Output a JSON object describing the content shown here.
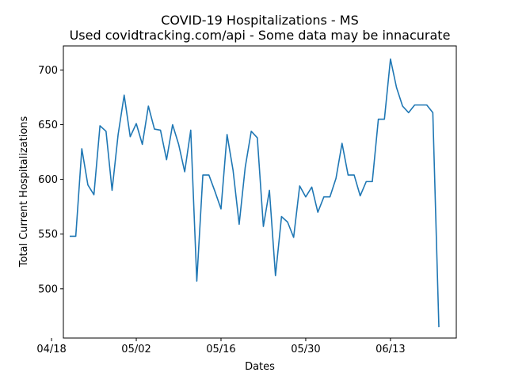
{
  "chart_data": {
    "type": "line",
    "title": "COVID-19 Hospitalizations - MS",
    "subtitle": "Used covidtracking.com/api - Some data may be innacurate",
    "xlabel": "Dates",
    "ylabel": "Total Current Hospitalizations",
    "x_tick_labels": [
      "04/18",
      "05/02",
      "05/16",
      "05/30",
      "06/13"
    ],
    "y_tick_labels": [
      "500",
      "550",
      "600",
      "650",
      "700"
    ],
    "y_ticks": [
      500,
      550,
      600,
      650,
      700
    ],
    "ylim": [
      455,
      722
    ],
    "x_start_date": "2020-04-21",
    "grid": false,
    "series": [
      {
        "color": "#1f77b4",
        "values": [
          548,
          548,
          628,
          595,
          586,
          649,
          644,
          590,
          641,
          677,
          639,
          651,
          632,
          667,
          646,
          645,
          618,
          650,
          632,
          607,
          645,
          507,
          604,
          604,
          589,
          573,
          641,
          608,
          559,
          611,
          644,
          638,
          557,
          590,
          512,
          566,
          561,
          547,
          594,
          584,
          593,
          570,
          584,
          584,
          601,
          633,
          604,
          604,
          585,
          598,
          598,
          655,
          655,
          710,
          684,
          667,
          661,
          668,
          668,
          668,
          661,
          465
        ]
      }
    ]
  }
}
